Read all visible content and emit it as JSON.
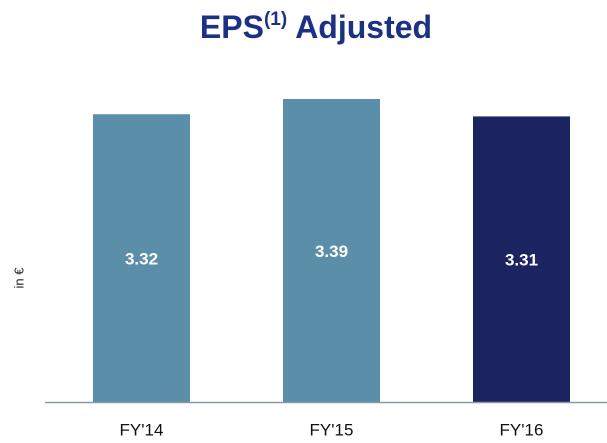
{
  "chart_data": {
    "type": "bar",
    "title": "EPS",
    "title_superscript": "(1)",
    "title_rest": "Adjusted",
    "y_label": "in €",
    "categories": [
      "FY'14",
      "FY'15",
      "FY'16"
    ],
    "values": [
      3.32,
      3.39,
      3.31
    ],
    "colors": [
      "#5b8fa9",
      "#5b8fa9",
      "#1b2361"
    ],
    "ylim": [
      2,
      3.5
    ]
  }
}
